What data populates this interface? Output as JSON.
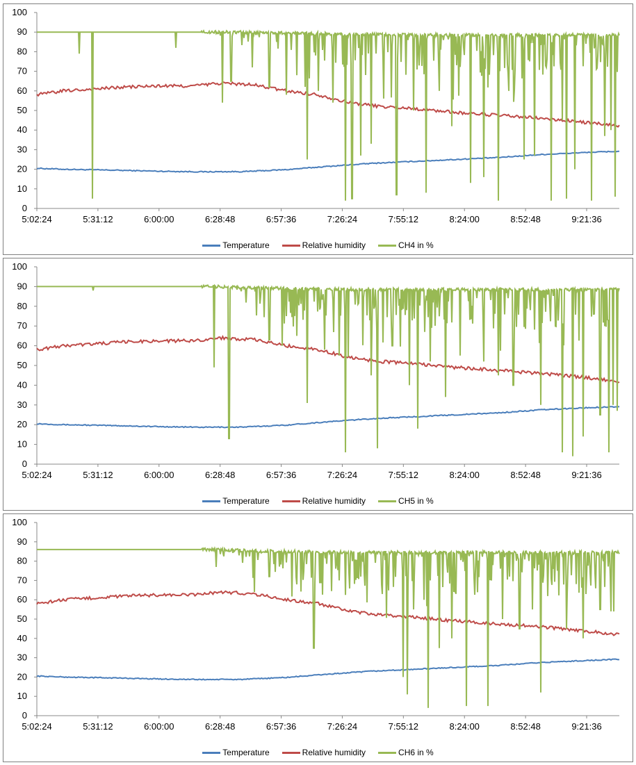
{
  "colors": {
    "temperature": "#4a7ebb",
    "humidity": "#be4b48",
    "ch": "#98b954"
  },
  "chart_data": [
    {
      "type": "line",
      "title": "",
      "xlabel": "",
      "ylabel": "",
      "ylim": [
        0,
        100
      ],
      "y_ticks": [
        "0",
        "10",
        "20",
        "30",
        "40",
        "50",
        "60",
        "70",
        "80",
        "90",
        "100"
      ],
      "x_ticks": [
        "5:02:24",
        "5:31:12",
        "6:00:00",
        "6:28:48",
        "6:57:36",
        "7:26:24",
        "7:55:12",
        "8:24:00",
        "8:52:48",
        "9:21:36"
      ],
      "x_range": [
        "5:02:24",
        "9:37:00"
      ],
      "grid": "horizontal",
      "legend": "bottom",
      "series": [
        {
          "name": "Temperature",
          "color": "#4a7ebb",
          "points": [
            [
              "5:02:24",
              20.5
            ],
            [
              "5:15:00",
              20
            ],
            [
              "5:40:00",
              19.5
            ],
            [
              "6:00:00",
              19
            ],
            [
              "6:20:00",
              18.7
            ],
            [
              "6:40:00",
              18.8
            ],
            [
              "7:00:00",
              19.8
            ],
            [
              "7:20:00",
              21.5
            ],
            [
              "7:40:00",
              23
            ],
            [
              "8:00:00",
              24
            ],
            [
              "8:20:00",
              25
            ],
            [
              "8:40:00",
              26
            ],
            [
              "9:00:00",
              27.5
            ],
            [
              "9:20:00",
              28.5
            ],
            [
              "9:37:00",
              29.2
            ]
          ]
        },
        {
          "name": "Relative humidity",
          "color": "#be4b48",
          "points": [
            [
              "5:02:24",
              58
            ],
            [
              "5:15:00",
              60
            ],
            [
              "5:30:00",
              61
            ],
            [
              "5:45:00",
              62
            ],
            [
              "6:00:00",
              62.5
            ],
            [
              "6:15:00",
              62.5
            ],
            [
              "6:30:00",
              64
            ],
            [
              "6:45:00",
              63
            ],
            [
              "7:00:00",
              60
            ],
            [
              "7:15:00",
              58
            ],
            [
              "7:30:00",
              54
            ],
            [
              "7:45:00",
              52
            ],
            [
              "8:00:00",
              51
            ],
            [
              "8:20:00",
              49
            ],
            [
              "8:40:00",
              47.5
            ],
            [
              "9:00:00",
              46
            ],
            [
              "9:20:00",
              44
            ],
            [
              "9:37:00",
              42
            ]
          ]
        },
        {
          "name": "CH4 in %",
          "color": "#98b954",
          "base": [
            [
              "5:02:24",
              90
            ],
            [
              "6:25:00",
              90
            ],
            [
              "6:40:00",
              90
            ],
            [
              "7:00:00",
              89.5
            ],
            [
              "7:30:00",
              89
            ],
            [
              "8:00:00",
              88.5
            ],
            [
              "9:37:00",
              88.5
            ]
          ],
          "dips": [
            [
              "5:22:30",
              79
            ],
            [
              "5:28:30",
              5
            ],
            [
              "6:08:00",
              82
            ],
            [
              "6:30:00",
              54
            ],
            [
              "6:34:00",
              65
            ],
            [
              "6:44:00",
              72
            ],
            [
              "6:52:00",
              62
            ],
            [
              "7:00:00",
              58
            ],
            [
              "7:05:00",
              68
            ],
            [
              "7:10:00",
              25
            ],
            [
              "7:15:00",
              60
            ],
            [
              "7:22:00",
              54
            ],
            [
              "7:28:00",
              4
            ],
            [
              "7:31:00",
              5
            ],
            [
              "7:35:00",
              27
            ],
            [
              "7:40:00",
              33
            ],
            [
              "7:52:00",
              7
            ],
            [
              "8:00:00",
              50
            ],
            [
              "8:06:00",
              8
            ],
            [
              "8:12:00",
              60
            ],
            [
              "8:18:00",
              42
            ],
            [
              "8:27:00",
              13
            ],
            [
              "8:33:00",
              16
            ],
            [
              "8:40:00",
              4
            ],
            [
              "8:45:00",
              60
            ],
            [
              "8:52:00",
              25
            ],
            [
              "8:57:00",
              27
            ],
            [
              "9:05:00",
              4
            ],
            [
              "9:10:00",
              45
            ],
            [
              "9:12:00",
              5
            ],
            [
              "9:16:00",
              20
            ],
            [
              "9:24:00",
              4
            ],
            [
              "9:30:00",
              37
            ],
            [
              "9:33:00",
              40
            ],
            [
              "9:35:00",
              6
            ]
          ]
        }
      ]
    },
    {
      "type": "line",
      "title": "",
      "xlabel": "",
      "ylabel": "",
      "ylim": [
        0,
        100
      ],
      "y_ticks": [
        "0",
        "10",
        "20",
        "30",
        "40",
        "50",
        "60",
        "70",
        "80",
        "90",
        "100"
      ],
      "x_ticks": [
        "5:02:24",
        "5:31:12",
        "6:00:00",
        "6:28:48",
        "6:57:36",
        "7:26:24",
        "7:55:12",
        "8:24:00",
        "8:52:48",
        "9:21:36"
      ],
      "x_range": [
        "5:02:24",
        "9:37:00"
      ],
      "grid": "horizontal",
      "legend": "bottom",
      "series": [
        {
          "name": "Temperature",
          "color": "#4a7ebb",
          "points": [
            [
              "5:02:24",
              20.5
            ],
            [
              "5:15:00",
              20
            ],
            [
              "5:40:00",
              19.5
            ],
            [
              "6:00:00",
              19
            ],
            [
              "6:20:00",
              18.7
            ],
            [
              "6:40:00",
              18.8
            ],
            [
              "7:00:00",
              19.8
            ],
            [
              "7:20:00",
              21.5
            ],
            [
              "7:40:00",
              23
            ],
            [
              "8:00:00",
              24
            ],
            [
              "8:20:00",
              25
            ],
            [
              "8:40:00",
              26
            ],
            [
              "9:00:00",
              27.5
            ],
            [
              "9:20:00",
              28.5
            ],
            [
              "9:37:00",
              29.2
            ]
          ]
        },
        {
          "name": "Relative humidity",
          "color": "#be4b48",
          "points": [
            [
              "5:02:24",
              58
            ],
            [
              "5:15:00",
              60
            ],
            [
              "5:30:00",
              61
            ],
            [
              "5:45:00",
              62
            ],
            [
              "6:00:00",
              62.5
            ],
            [
              "6:15:00",
              62.5
            ],
            [
              "6:30:00",
              64
            ],
            [
              "6:45:00",
              63
            ],
            [
              "7:00:00",
              60
            ],
            [
              "7:15:00",
              58
            ],
            [
              "7:30:00",
              54
            ],
            [
              "7:45:00",
              52
            ],
            [
              "8:00:00",
              51
            ],
            [
              "8:20:00",
              49
            ],
            [
              "8:40:00",
              47.5
            ],
            [
              "9:00:00",
              46
            ],
            [
              "9:20:00",
              44
            ],
            [
              "9:37:00",
              42
            ]
          ]
        },
        {
          "name": "CH5 in %",
          "color": "#98b954",
          "base": [
            [
              "5:02:24",
              90
            ],
            [
              "6:25:00",
              90
            ],
            [
              "6:40:00",
              89.5
            ],
            [
              "7:00:00",
              89
            ],
            [
              "7:30:00",
              88.5
            ],
            [
              "8:00:00",
              88.5
            ],
            [
              "9:37:00",
              88.5
            ]
          ],
          "dips": [
            [
              "5:29:00",
              88
            ],
            [
              "6:26:00",
              49
            ],
            [
              "6:33:00",
              13
            ],
            [
              "6:52:00",
              63
            ],
            [
              "6:58:00",
              60
            ],
            [
              "7:05:00",
              65
            ],
            [
              "7:10:00",
              31
            ],
            [
              "7:18:00",
              58
            ],
            [
              "7:25:00",
              55
            ],
            [
              "7:28:00",
              6
            ],
            [
              "7:40:00",
              45
            ],
            [
              "7:43:00",
              8
            ],
            [
              "7:50:00",
              60
            ],
            [
              "7:58:00",
              40
            ],
            [
              "8:02:00",
              18
            ],
            [
              "8:08:00",
              52
            ],
            [
              "8:15:00",
              34
            ],
            [
              "8:22:00",
              55
            ],
            [
              "8:33:00",
              52
            ],
            [
              "8:40:00",
              45
            ],
            [
              "8:47:00",
              40
            ],
            [
              "9:00:00",
              30
            ],
            [
              "9:10:00",
              6
            ],
            [
              "9:15:00",
              4
            ],
            [
              "9:20:00",
              14
            ],
            [
              "9:28:00",
              25
            ],
            [
              "9:32:00",
              6
            ],
            [
              "9:34:00",
              30
            ],
            [
              "9:36:00",
              27
            ]
          ]
        }
      ]
    },
    {
      "type": "line",
      "title": "",
      "xlabel": "",
      "ylabel": "",
      "ylim": [
        0,
        100
      ],
      "y_ticks": [
        "0",
        "10",
        "20",
        "30",
        "40",
        "50",
        "60",
        "70",
        "80",
        "90",
        "100"
      ],
      "x_ticks": [
        "5:02:24",
        "5:31:12",
        "6:00:00",
        "6:28:48",
        "6:57:36",
        "7:26:24",
        "7:55:12",
        "8:24:00",
        "8:52:48",
        "9:21:36"
      ],
      "x_range": [
        "5:02:24",
        "9:37:00"
      ],
      "grid": "horizontal",
      "legend": "bottom",
      "series": [
        {
          "name": "Temperature",
          "color": "#4a7ebb",
          "points": [
            [
              "5:02:24",
              20.5
            ],
            [
              "5:15:00",
              20
            ],
            [
              "5:40:00",
              19.5
            ],
            [
              "6:00:00",
              19
            ],
            [
              "6:20:00",
              18.7
            ],
            [
              "6:40:00",
              18.8
            ],
            [
              "7:00:00",
              19.8
            ],
            [
              "7:20:00",
              21.5
            ],
            [
              "7:40:00",
              23
            ],
            [
              "8:00:00",
              24
            ],
            [
              "8:20:00",
              25
            ],
            [
              "8:40:00",
              26
            ],
            [
              "9:00:00",
              27.5
            ],
            [
              "9:20:00",
              28.5
            ],
            [
              "9:37:00",
              29.2
            ]
          ]
        },
        {
          "name": "Relative humidity",
          "color": "#be4b48",
          "points": [
            [
              "5:02:24",
              58
            ],
            [
              "5:15:00",
              60
            ],
            [
              "5:30:00",
              61
            ],
            [
              "5:45:00",
              62
            ],
            [
              "6:00:00",
              62.5
            ],
            [
              "6:15:00",
              62.5
            ],
            [
              "6:30:00",
              64
            ],
            [
              "6:45:00",
              63
            ],
            [
              "7:00:00",
              60
            ],
            [
              "7:15:00",
              58
            ],
            [
              "7:30:00",
              54
            ],
            [
              "7:45:00",
              52
            ],
            [
              "8:00:00",
              51
            ],
            [
              "8:20:00",
              49
            ],
            [
              "8:40:00",
              47.5
            ],
            [
              "9:00:00",
              46
            ],
            [
              "9:20:00",
              44
            ],
            [
              "9:37:00",
              42
            ]
          ]
        },
        {
          "name": "CH6 in %",
          "color": "#98b954",
          "base": [
            [
              "5:02:24",
              86
            ],
            [
              "6:25:00",
              86
            ],
            [
              "6:40:00",
              85.5
            ],
            [
              "7:00:00",
              85
            ],
            [
              "7:30:00",
              84.5
            ],
            [
              "8:00:00",
              84.5
            ],
            [
              "9:37:00",
              84.5
            ]
          ],
          "dips": [
            [
              "6:27:00",
              77
            ],
            [
              "6:45:00",
              64
            ],
            [
              "6:52:00",
              72
            ],
            [
              "7:05:00",
              68
            ],
            [
              "7:13:00",
              35
            ],
            [
              "7:25:00",
              70
            ],
            [
              "7:35:00",
              72
            ],
            [
              "7:45:00",
              68
            ],
            [
              "7:55:00",
              20
            ],
            [
              "7:57:00",
              11
            ],
            [
              "8:00:00",
              55
            ],
            [
              "8:05:00",
              60
            ],
            [
              "8:07:00",
              4
            ],
            [
              "8:12:00",
              35
            ],
            [
              "8:18:00",
              40
            ],
            [
              "8:25:00",
              5
            ],
            [
              "8:35:00",
              5
            ],
            [
              "8:42:00",
              50
            ],
            [
              "8:50:00",
              45
            ],
            [
              "8:56:00",
              55
            ],
            [
              "9:00:00",
              12
            ],
            [
              "9:12:00",
              45
            ],
            [
              "9:20:00",
              40
            ],
            [
              "9:28:00",
              55
            ],
            [
              "9:33:00",
              54
            ]
          ]
        }
      ]
    }
  ]
}
